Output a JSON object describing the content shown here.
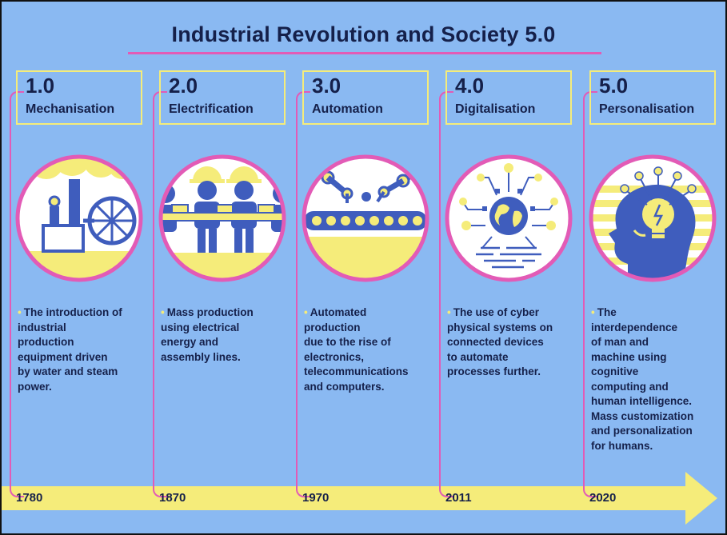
{
  "title": "Industrial Revolution and Society 5.0",
  "colors": {
    "background": "#8ab9f2",
    "accent_yellow": "#f5ec7a",
    "accent_pink": "#e25bb6",
    "text_navy": "#15204a",
    "icon_blue": "#3f5dbd"
  },
  "stages": [
    {
      "number": "1.0",
      "name": "Mechanisation",
      "icon": "steam-engine-icon",
      "description": "The introduction of\nindustrial\nproduction\nequipment driven\nby water and steam\npower.",
      "year": "1780"
    },
    {
      "number": "2.0",
      "name": "Electrification",
      "icon": "assembly-line-workers-icon",
      "description": "Mass production\nusing electrical\nenergy and\nassembly lines.",
      "year": "1870"
    },
    {
      "number": "3.0",
      "name": "Automation",
      "icon": "robotic-arms-icon",
      "description": "Automated\nproduction\ndue to the rise of\nelectronics,\ntelecommunications\nand computers.",
      "year": "1970"
    },
    {
      "number": "4.0",
      "name": "Digitalisation",
      "icon": "connected-globe-icon",
      "description": "The use of cyber\nphysical systems on\nconnected devices\nto automate\nprocesses further.",
      "year": "2011"
    },
    {
      "number": "5.0",
      "name": "Personalisation",
      "icon": "human-head-lightbulb-icon",
      "description": "The\ninterdependence\nof man and\nmachine using\ncognitive\ncomputing and\nhuman intelligence.\nMass customization\nand personalization\nfor humans.",
      "year": "2020"
    }
  ]
}
